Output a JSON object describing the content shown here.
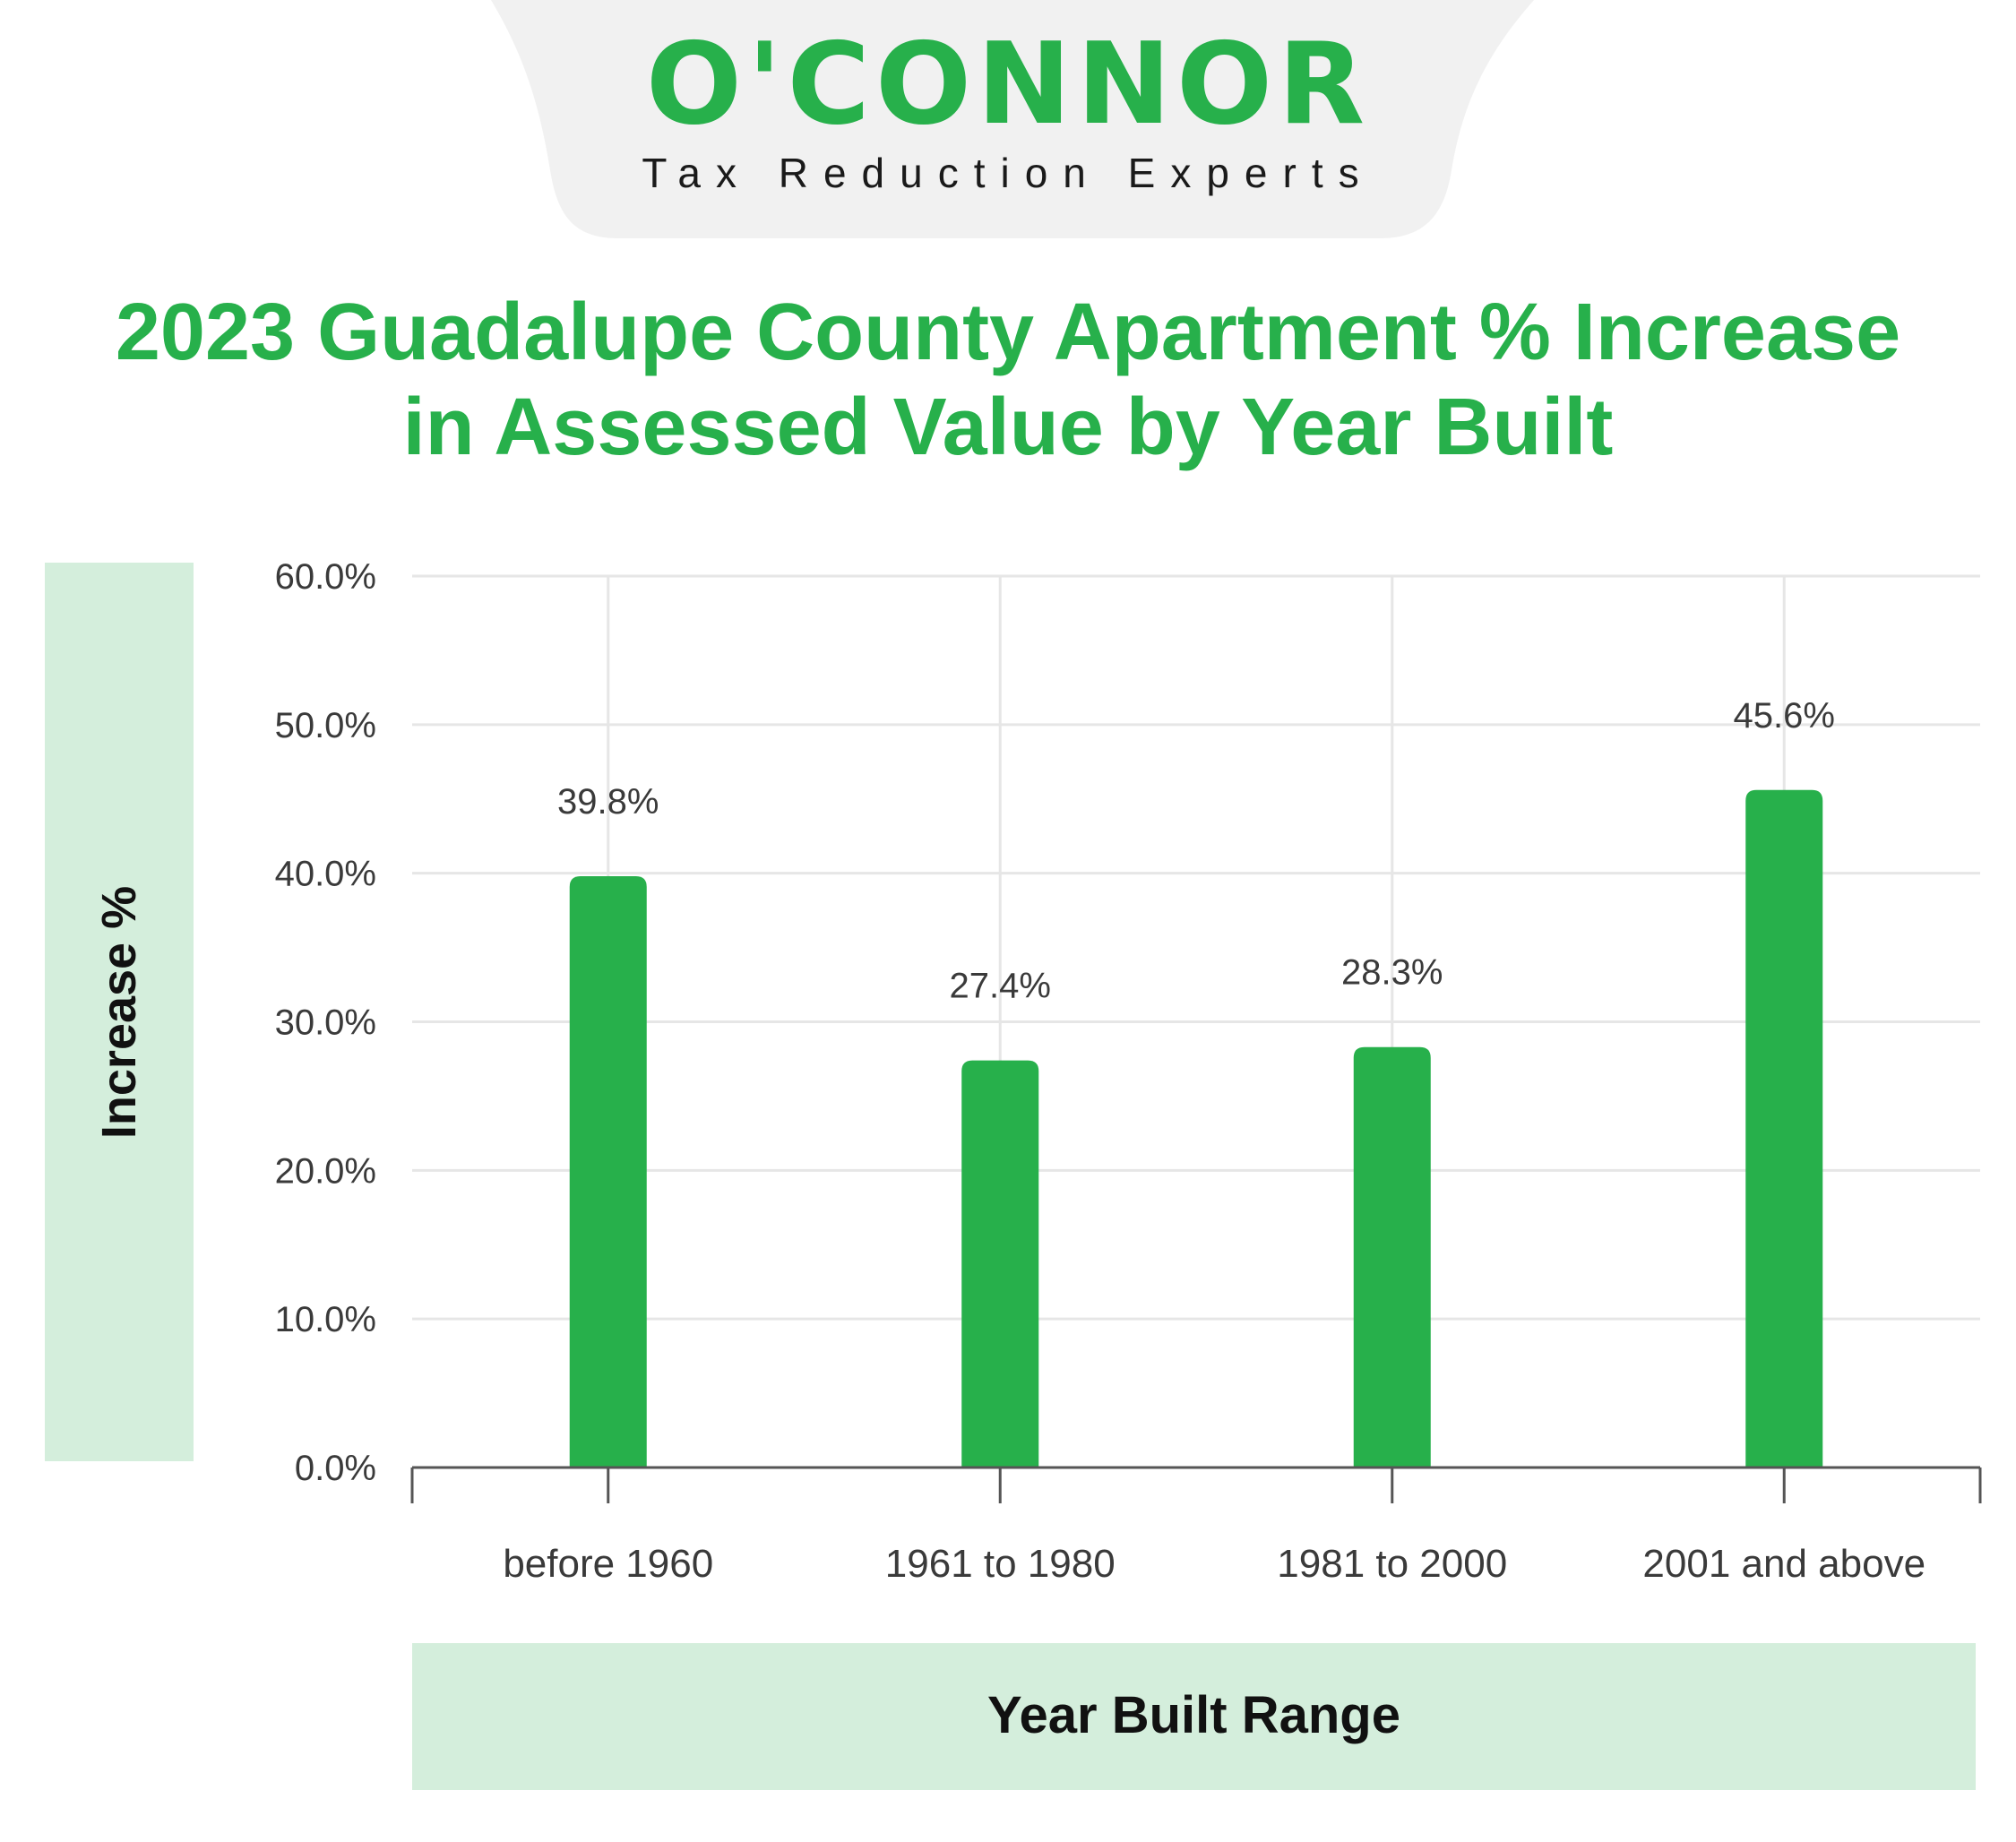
{
  "brand": {
    "name": "O'CONNOR",
    "tagline": "Tax Reduction Experts",
    "color": "#27b04b"
  },
  "chart_data": {
    "type": "bar",
    "title": "2023 Guadalupe County Apartment % Increase in Assessed Value by Year Built",
    "title_lines": [
      "2023 Guadalupe County Apartment % Increase",
      "in Assessed Value by Year Built"
    ],
    "xlabel": "Year Built Range",
    "ylabel": "Increase %",
    "categories": [
      "before 1960",
      "1961 to 1980",
      "1981 to 2000",
      "2001 and above"
    ],
    "values": [
      39.8,
      27.4,
      28.3,
      45.6
    ],
    "data_labels": [
      "39.8%",
      "27.4%",
      "28.3%",
      "45.6%"
    ],
    "ylim": [
      0,
      60
    ],
    "yticks": [
      "0.0%",
      "10.0%",
      "20.0%",
      "30.0%",
      "40.0%",
      "50.0%",
      "60.0%"
    ],
    "grid": true,
    "legend": "none",
    "bar_color": "#27b04b"
  }
}
